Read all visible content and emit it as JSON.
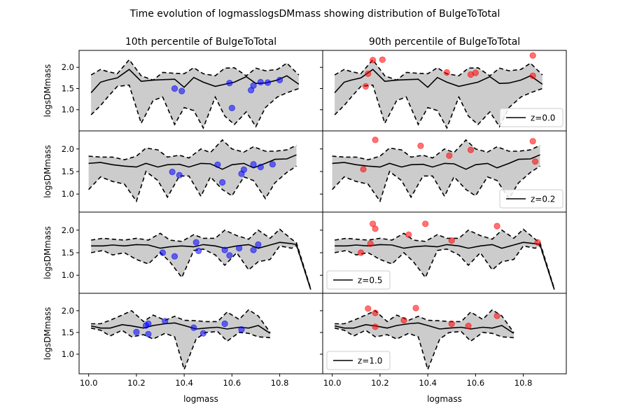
{
  "figure": {
    "suptitle": "Time evolution of logmasslogsDMmass showing distribution of BulgeToTotal",
    "column_titles": [
      "10th percentile of BulgeToTotal",
      "90th percentile of BulgeToTotal"
    ]
  },
  "chart_data": {
    "type": "line",
    "xlabel": "logmass",
    "ylabel": "logsDMmass",
    "xlim": [
      9.96,
      10.98
    ],
    "xticks": [
      "10.0",
      "10.2",
      "10.4",
      "10.6",
      "10.8"
    ],
    "yticks": [
      "1.0",
      "1.5",
      "2.0"
    ],
    "band_color": "#cccccc",
    "median_color": "#000000",
    "low_color": "#0000ff",
    "high_color": "#ff0000",
    "grid": false,
    "rows": [
      {
        "legend": "z=0.0",
        "legend_position": "lower right",
        "ylim": [
          0.5,
          2.4
        ],
        "x": [
          10.01,
          10.05,
          10.08,
          10.12,
          10.17,
          10.22,
          10.27,
          10.31,
          10.36,
          10.4,
          10.44,
          10.48,
          10.53,
          10.57,
          10.61,
          10.66,
          10.7,
          10.74,
          10.79,
          10.83,
          10.88
        ],
        "median": [
          1.4,
          1.65,
          1.7,
          1.75,
          1.95,
          1.67,
          1.7,
          1.71,
          1.72,
          1.53,
          1.76,
          1.65,
          1.55,
          1.6,
          1.65,
          1.78,
          1.62,
          1.63,
          1.7,
          1.8,
          1.6
        ],
        "upper": [
          1.82,
          1.95,
          1.9,
          1.85,
          2.18,
          1.8,
          1.7,
          1.88,
          1.86,
          1.85,
          1.99,
          1.85,
          1.8,
          1.98,
          1.99,
          1.8,
          1.98,
          1.92,
          1.95,
          2.1,
          1.82
        ],
        "lower": [
          0.88,
          1.1,
          1.3,
          1.55,
          1.58,
          0.68,
          1.22,
          1.3,
          0.65,
          1.05,
          0.98,
          0.57,
          1.3,
          0.85,
          0.65,
          0.95,
          0.6,
          1.05,
          1.3,
          1.4,
          1.5
        ],
        "low_points": {
          "x": [
            10.36,
            10.39,
            10.59,
            10.6,
            10.68,
            10.69,
            10.72,
            10.75,
            10.8
          ],
          "y": [
            1.5,
            1.44,
            1.63,
            1.04,
            1.46,
            1.57,
            1.65,
            1.64,
            1.7
          ]
        },
        "high_points": {
          "x": [
            10.14,
            10.15,
            10.17,
            10.21,
            10.48,
            10.58,
            10.6,
            10.84,
            10.84
          ],
          "y": [
            1.55,
            1.85,
            2.17,
            2.18,
            1.88,
            1.83,
            1.87,
            2.28,
            1.8
          ]
        }
      },
      {
        "legend": "z=0.2",
        "legend_position": "lower right",
        "ylim": [
          0.6,
          2.4
        ],
        "x": [
          10.0,
          10.05,
          10.1,
          10.15,
          10.2,
          10.24,
          10.29,
          10.33,
          10.38,
          10.42,
          10.47,
          10.51,
          10.56,
          10.6,
          10.65,
          10.69,
          10.74,
          10.78,
          10.83,
          10.87
        ],
        "median": [
          1.68,
          1.7,
          1.65,
          1.62,
          1.6,
          1.68,
          1.6,
          1.65,
          1.66,
          1.6,
          1.68,
          1.67,
          1.55,
          1.65,
          1.68,
          1.58,
          1.68,
          1.77,
          1.78,
          1.87
        ],
        "upper": [
          1.84,
          1.82,
          1.82,
          1.76,
          1.84,
          2.02,
          1.98,
          1.82,
          1.86,
          1.8,
          2.0,
          1.92,
          2.2,
          2.0,
          1.93,
          2.05,
          1.95,
          1.95,
          1.98,
          2.08
        ],
        "lower": [
          1.1,
          1.38,
          1.28,
          1.22,
          0.84,
          1.5,
          1.3,
          0.93,
          1.4,
          1.4,
          0.95,
          1.38,
          1.1,
          0.96,
          1.38,
          1.3,
          0.9,
          1.25,
          1.48,
          1.62
        ],
        "low_points": {
          "x": [
            10.35,
            10.38,
            10.54,
            10.56,
            10.64,
            10.65,
            10.69,
            10.72,
            10.77
          ],
          "y": [
            1.49,
            1.42,
            1.65,
            1.26,
            1.45,
            1.54,
            1.66,
            1.6,
            1.66
          ]
        },
        "high_points": {
          "x": [
            10.13,
            10.18,
            10.37,
            10.49,
            10.58,
            10.84,
            10.85
          ],
          "y": [
            1.55,
            2.2,
            2.07,
            1.85,
            1.98,
            2.17,
            1.72
          ]
        }
      },
      {
        "legend": "z=0.5",
        "legend_position": "lower left",
        "ylim": [
          0.6,
          2.4
        ],
        "x": [
          10.01,
          10.06,
          10.1,
          10.15,
          10.2,
          10.25,
          10.3,
          10.34,
          10.39,
          10.44,
          10.48,
          10.53,
          10.57,
          10.62,
          10.67,
          10.71,
          10.76,
          10.8,
          10.85,
          10.87,
          10.93
        ],
        "median": [
          1.65,
          1.65,
          1.67,
          1.65,
          1.68,
          1.67,
          1.6,
          1.63,
          1.65,
          1.63,
          1.68,
          1.65,
          1.6,
          1.65,
          1.68,
          1.6,
          1.67,
          1.73,
          1.7,
          1.68,
          0.68
        ],
        "upper": [
          1.78,
          1.82,
          1.8,
          1.78,
          1.82,
          1.78,
          1.93,
          1.78,
          1.75,
          1.9,
          1.82,
          1.82,
          2.0,
          1.88,
          1.8,
          2.0,
          1.82,
          2.02,
          1.8,
          1.72,
          0.7
        ],
        "lower": [
          1.5,
          1.55,
          1.45,
          1.5,
          1.35,
          1.25,
          1.5,
          1.3,
          0.95,
          1.55,
          1.58,
          1.45,
          1.22,
          1.5,
          1.12,
          1.3,
          1.35,
          1.65,
          1.6,
          1.66,
          0.68
        ],
        "low_points": {
          "x": [
            10.31,
            10.36,
            10.45,
            10.46,
            10.57,
            10.59,
            10.63,
            10.69,
            10.71
          ],
          "y": [
            1.5,
            1.42,
            1.73,
            1.54,
            1.56,
            1.44,
            1.6,
            1.56,
            1.68
          ]
        },
        "high_points": {
          "x": [
            10.12,
            10.16,
            10.17,
            10.18,
            10.32,
            10.39,
            10.5,
            10.69,
            10.86
          ],
          "y": [
            1.5,
            1.7,
            2.14,
            2.03,
            1.9,
            2.14,
            1.77,
            2.09,
            1.73
          ]
        }
      },
      {
        "legend": "z=1.0",
        "legend_position": "lower left",
        "ylim": [
          0.55,
          2.4
        ],
        "x": [
          10.01,
          10.05,
          10.09,
          10.14,
          10.18,
          10.23,
          10.27,
          10.32,
          10.36,
          10.4,
          10.45,
          10.49,
          10.54,
          10.58,
          10.63,
          10.67,
          10.71,
          10.76
        ],
        "median": [
          1.65,
          1.6,
          1.6,
          1.68,
          1.65,
          1.6,
          1.66,
          1.7,
          1.72,
          1.66,
          1.58,
          1.6,
          1.62,
          1.58,
          1.62,
          1.6,
          1.66,
          1.48
        ],
        "upper": [
          1.7,
          1.7,
          1.78,
          1.9,
          2.0,
          1.75,
          1.9,
          1.78,
          1.87,
          1.78,
          1.77,
          1.75,
          1.75,
          1.97,
          1.8,
          2.02,
          1.88,
          1.5
        ],
        "lower": [
          1.6,
          1.55,
          1.42,
          1.55,
          1.4,
          1.45,
          1.35,
          1.48,
          1.4,
          0.65,
          1.35,
          1.5,
          1.52,
          1.3,
          1.5,
          1.48,
          1.4,
          1.38
        ],
        "low_points": {
          "x": [
            10.2,
            10.24,
            10.25,
            10.25,
            10.32,
            10.44,
            10.48,
            10.57,
            10.64
          ],
          "y": [
            1.51,
            1.66,
            1.46,
            1.7,
            1.76,
            1.61,
            1.48,
            1.7,
            1.57
          ]
        },
        "high_points": {
          "x": [
            10.15,
            10.18,
            10.18,
            10.3,
            10.35,
            10.5,
            10.57,
            10.69
          ],
          "y": [
            2.05,
            1.95,
            1.63,
            1.78,
            2.06,
            1.7,
            1.65,
            1.88
          ]
        }
      }
    ]
  }
}
